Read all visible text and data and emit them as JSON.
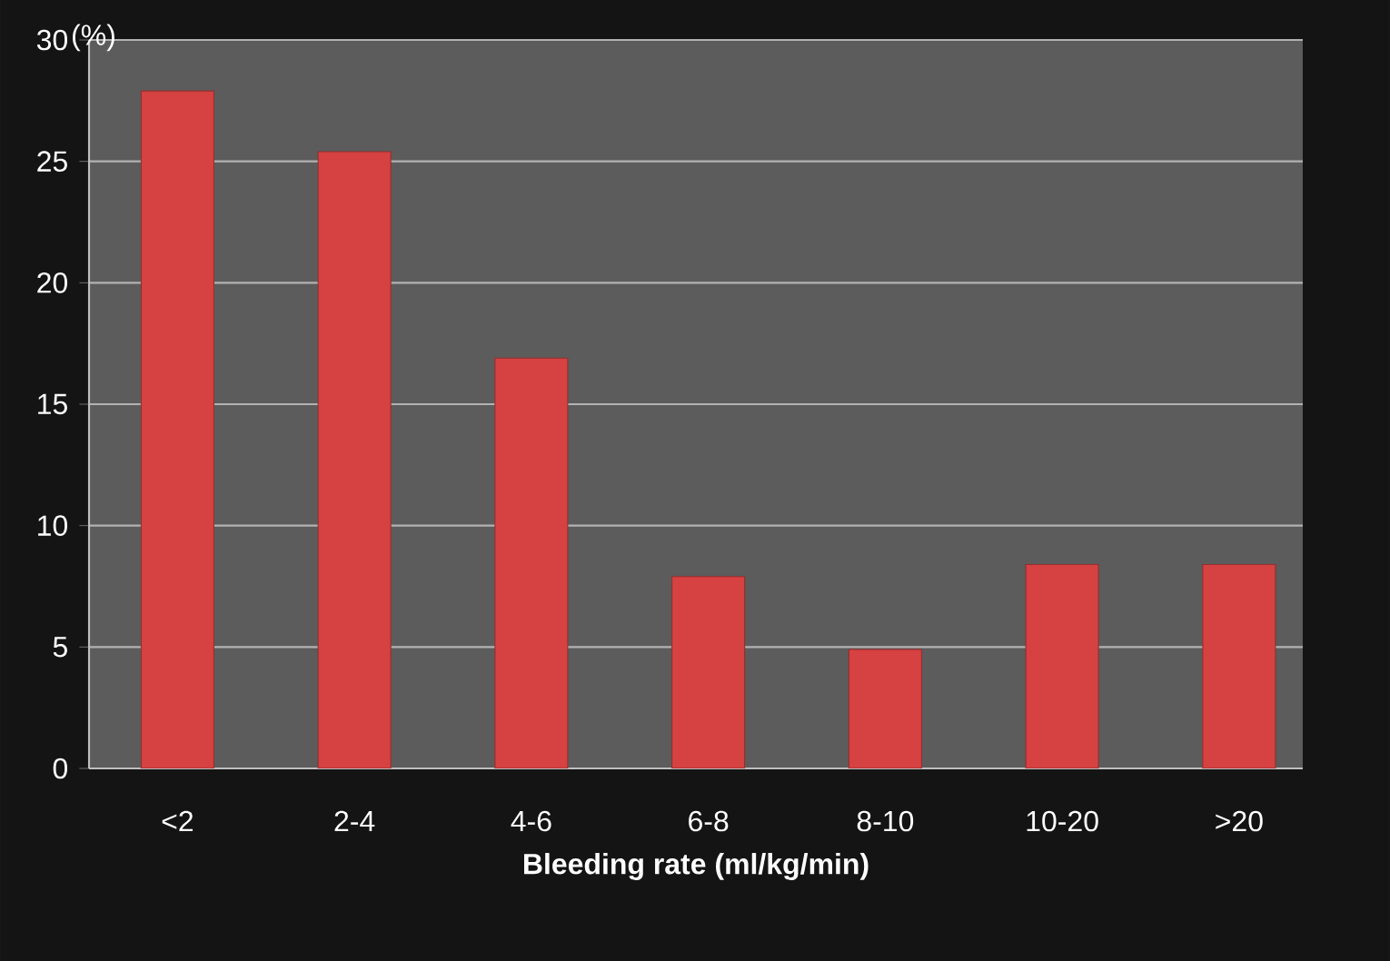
{
  "chart_data": {
    "type": "bar",
    "xlabel": "**Bleeding rate (ml/kg/min)**",
    "categories": [
      "<2",
      "2-4",
      "4-6",
      "6-8",
      "8-10",
      "10-20",
      ">20"
    ],
    "values": [
      27.9,
      25.4,
      16.9,
      7.9,
      4.9,
      8.4,
      8.4
    ],
    "color": "#d64141",
    "ylim": [
      0,
      30
    ],
    "ylabel": "(%)",
    "yticks": [
      0,
      5,
      10,
      15,
      20,
      25,
      30
    ],
    "grid": "y"
  }
}
